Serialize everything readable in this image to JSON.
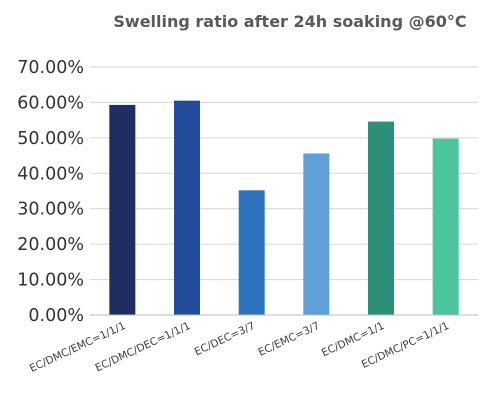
{
  "chart_data": {
    "type": "bar",
    "title": "Swelling ratio after 24h soaking @60°C",
    "xlabel": "",
    "ylabel": "",
    "categories": [
      "EC/DMC/EMC=1/1/1",
      "EC/DMC/DEC=1/1/1",
      "EC/DEC=3/7",
      "EC/EMC=3/7",
      "EC/DMC=1/1",
      "EC/DMC/PC=1/1/1"
    ],
    "values": [
      59.3,
      60.5,
      35.2,
      45.6,
      54.6,
      49.8
    ],
    "value_format": "percent",
    "ylim": [
      0,
      70
    ],
    "yticks": [
      0,
      10,
      20,
      30,
      40,
      50,
      60,
      70
    ],
    "ytick_labels": [
      "0.00%",
      "10.00%",
      "20.00%",
      "30.00%",
      "40.00%",
      "50.00%",
      "60.00%",
      "70.00%"
    ],
    "bar_colors": [
      "#1f2d63",
      "#234c9c",
      "#2d73bd",
      "#5fa0d8",
      "#2e8f78",
      "#4cc49d"
    ],
    "grid": true,
    "legend": "none"
  }
}
